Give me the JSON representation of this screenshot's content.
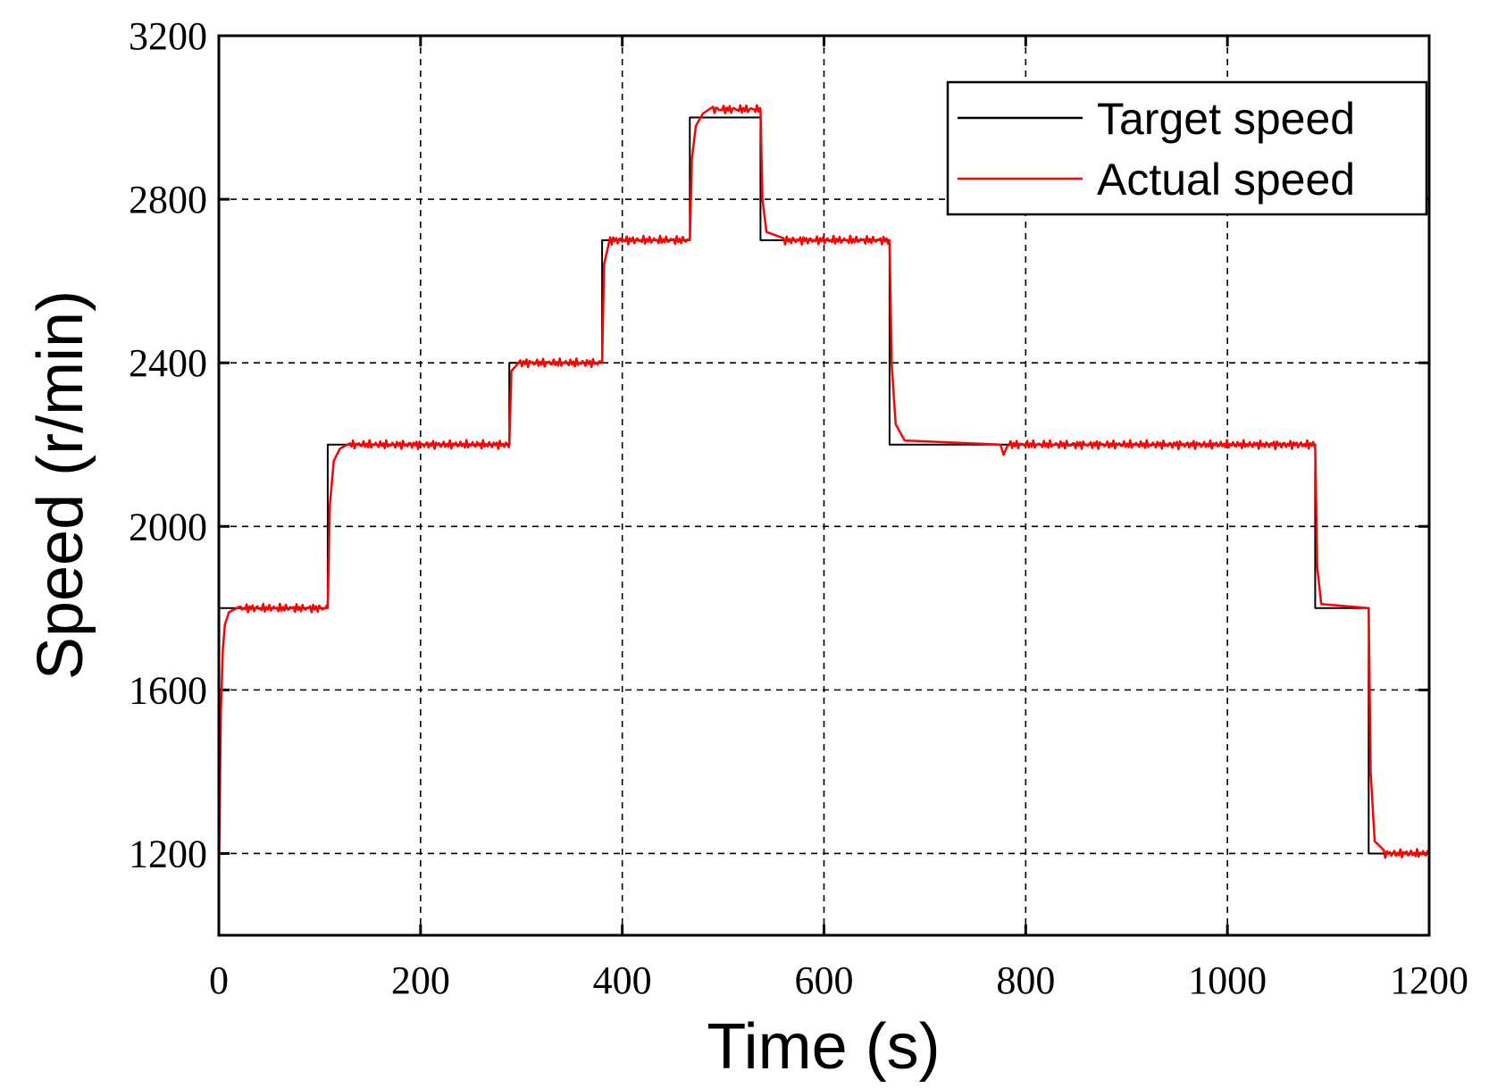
{
  "chart_data": {
    "type": "line",
    "xlabel": "Time (s)",
    "ylabel": "Speed (r/min)",
    "xlim": [
      0,
      1200
    ],
    "ylim": [
      1000,
      3200
    ],
    "xticks": [
      0,
      200,
      400,
      600,
      800,
      1000,
      1200
    ],
    "yticks": [
      1200,
      1600,
      2000,
      2400,
      2800,
      3200
    ],
    "grid": true,
    "legend_position": "top-right",
    "series": [
      {
        "name": "Target speed",
        "color": "#000000",
        "x": [
          0,
          0,
          108,
          108,
          288,
          288,
          380,
          380,
          467,
          467,
          537,
          537,
          665,
          665,
          1087,
          1087,
          1140,
          1140,
          1200
        ],
        "y": [
          1200,
          1800,
          1800,
          2200,
          2200,
          2400,
          2400,
          2700,
          2700,
          3000,
          3000,
          2700,
          2700,
          2200,
          2200,
          1800,
          1800,
          1200,
          1200
        ]
      },
      {
        "name": "Actual speed",
        "color": "#ff0000",
        "x": [
          0,
          2,
          4,
          6,
          10,
          20,
          108,
          110,
          114,
          120,
          130,
          288,
          290,
          296,
          380,
          382,
          388,
          467,
          469,
          473,
          480,
          490,
          537,
          539,
          543,
          560,
          665,
          667,
          671,
          680,
          775,
          778,
          782,
          800,
          1087,
          1089,
          1093,
          1140,
          1142,
          1146,
          1155,
          1200
        ],
        "y": [
          1120,
          1550,
          1700,
          1760,
          1790,
          1800,
          1800,
          2050,
          2160,
          2190,
          2200,
          2200,
          2380,
          2400,
          2400,
          2640,
          2700,
          2700,
          2900,
          2980,
          3010,
          3020,
          3020,
          2800,
          2720,
          2700,
          2700,
          2400,
          2250,
          2210,
          2200,
          2175,
          2200,
          2200,
          2200,
          1900,
          1810,
          1800,
          1400,
          1230,
          1200,
          1200
        ]
      }
    ]
  }
}
